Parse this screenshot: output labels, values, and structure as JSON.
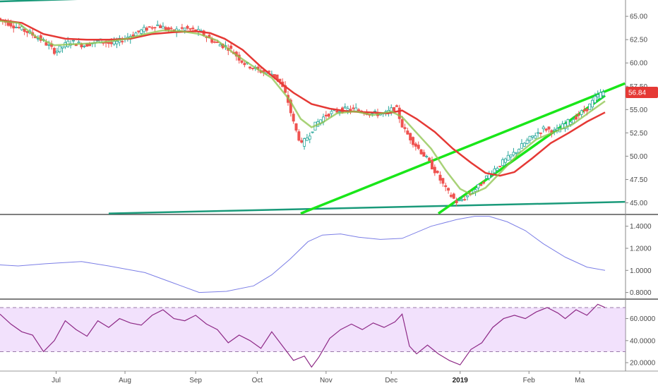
{
  "chart_data": [
    {
      "type": "candlestick",
      "panel": "price",
      "y_ticks": [
        "65.00",
        "62.50",
        "60.00",
        "57.50",
        "55.00",
        "52.50",
        "50.00",
        "47.50",
        "45.00"
      ],
      "ylim": [
        43.75,
        66.75
      ],
      "last_price": "56.84",
      "colors": {
        "up": "#26a69a",
        "down": "#ef5350",
        "fast_ma": "#8bc34a",
        "slow_ma": "#e53935",
        "trendline": "#19e619",
        "channel": "#1a9a7a",
        "badge": "#e53935"
      },
      "price_path": [
        [
          0,
          64.8
        ],
        [
          8,
          64.1
        ],
        [
          18,
          63.2
        ],
        [
          25,
          62.4
        ],
        [
          32,
          61.2
        ],
        [
          40,
          62.3
        ],
        [
          48,
          61.9
        ],
        [
          56,
          62.4
        ],
        [
          64,
          62.0
        ],
        [
          72,
          62.8
        ],
        [
          80,
          63.5
        ],
        [
          88,
          64.1
        ],
        [
          96,
          63.4
        ],
        [
          104,
          63.7
        ],
        [
          112,
          63.3
        ],
        [
          120,
          62.2
        ],
        [
          128,
          61.6
        ],
        [
          136,
          60.0
        ],
        [
          144,
          59.2
        ],
        [
          152,
          58.8
        ],
        [
          156,
          58.0
        ],
        [
          160,
          56.2
        ],
        [
          164,
          53.2
        ],
        [
          168,
          51.2
        ],
        [
          172,
          52.3
        ],
        [
          176,
          53.5
        ],
        [
          182,
          54.5
        ],
        [
          190,
          55.0
        ],
        [
          198,
          55.0
        ],
        [
          206,
          54.6
        ],
        [
          214,
          54.5
        ],
        [
          220,
          55.3
        ],
        [
          224,
          53.0
        ],
        [
          230,
          51.4
        ],
        [
          236,
          50.0
        ],
        [
          242,
          48.3
        ],
        [
          248,
          46.3
        ],
        [
          254,
          45.0
        ],
        [
          260,
          45.8
        ],
        [
          266,
          46.8
        ],
        [
          272,
          48.2
        ],
        [
          278,
          49.2
        ],
        [
          284,
          50.1
        ],
        [
          290,
          51.2
        ],
        [
          296,
          52.2
        ],
        [
          302,
          53.0
        ],
        [
          308,
          52.6
        ],
        [
          314,
          53.5
        ],
        [
          320,
          54.3
        ],
        [
          326,
          55.2
        ],
        [
          330,
          56.2
        ],
        [
          334,
          56.84
        ]
      ],
      "fast_ma": [
        [
          0,
          64.5
        ],
        [
          10,
          64.3
        ],
        [
          20,
          62.8
        ],
        [
          30,
          61.9
        ],
        [
          40,
          62.0
        ],
        [
          50,
          62.1
        ],
        [
          60,
          62.3
        ],
        [
          70,
          62.6
        ],
        [
          80,
          63.1
        ],
        [
          90,
          63.5
        ],
        [
          100,
          63.4
        ],
        [
          110,
          63.1
        ],
        [
          120,
          62.4
        ],
        [
          130,
          60.9
        ],
        [
          140,
          59.6
        ],
        [
          150,
          58.4
        ],
        [
          160,
          56.0
        ],
        [
          166,
          54.0
        ],
        [
          172,
          53.1
        ],
        [
          178,
          53.6
        ],
        [
          186,
          54.6
        ],
        [
          196,
          54.8
        ],
        [
          206,
          54.4
        ],
        [
          216,
          54.8
        ],
        [
          222,
          54.2
        ],
        [
          230,
          52.5
        ],
        [
          238,
          50.8
        ],
        [
          246,
          48.5
        ],
        [
          254,
          46.5
        ],
        [
          260,
          45.9
        ],
        [
          268,
          46.6
        ],
        [
          276,
          48.2
        ],
        [
          286,
          50.2
        ],
        [
          296,
          51.8
        ],
        [
          306,
          52.6
        ],
        [
          316,
          53.4
        ],
        [
          326,
          54.8
        ],
        [
          334,
          55.9
        ]
      ],
      "slow_ma": [
        [
          0,
          64.6
        ],
        [
          12,
          64.3
        ],
        [
          24,
          63.1
        ],
        [
          36,
          62.6
        ],
        [
          48,
          62.5
        ],
        [
          60,
          62.5
        ],
        [
          72,
          62.6
        ],
        [
          84,
          63.1
        ],
        [
          96,
          63.3
        ],
        [
          108,
          63.4
        ],
        [
          116,
          63.2
        ],
        [
          124,
          62.6
        ],
        [
          134,
          61.4
        ],
        [
          144,
          59.6
        ],
        [
          154,
          58.0
        ],
        [
          162,
          56.8
        ],
        [
          172,
          55.6
        ],
        [
          182,
          55.1
        ],
        [
          192,
          54.8
        ],
        [
          204,
          54.7
        ],
        [
          214,
          54.6
        ],
        [
          222,
          54.9
        ],
        [
          230,
          54.0
        ],
        [
          240,
          52.6
        ],
        [
          250,
          50.8
        ],
        [
          260,
          49.3
        ],
        [
          268,
          48.2
        ],
        [
          276,
          47.9
        ],
        [
          284,
          48.3
        ],
        [
          294,
          49.8
        ],
        [
          304,
          51.4
        ],
        [
          314,
          52.5
        ],
        [
          324,
          53.7
        ],
        [
          334,
          54.7
        ]
      ]
    },
    {
      "type": "line",
      "panel": "indicator",
      "y_ticks": [
        "1.4000",
        "1.2000",
        "1.0000",
        "0.8000"
      ],
      "ylim": [
        0.74,
        1.5
      ],
      "color": "#7b7ee6",
      "points": [
        [
          0,
          1.05
        ],
        [
          10,
          1.04
        ],
        [
          25,
          1.06
        ],
        [
          45,
          1.08
        ],
        [
          60,
          1.04
        ],
        [
          80,
          0.98
        ],
        [
          95,
          0.89
        ],
        [
          110,
          0.8
        ],
        [
          125,
          0.81
        ],
        [
          140,
          0.86
        ],
        [
          150,
          0.96
        ],
        [
          160,
          1.1
        ],
        [
          170,
          1.26
        ],
        [
          178,
          1.32
        ],
        [
          188,
          1.33
        ],
        [
          198,
          1.3
        ],
        [
          210,
          1.28
        ],
        [
          222,
          1.29
        ],
        [
          238,
          1.4
        ],
        [
          252,
          1.46
        ],
        [
          262,
          1.49
        ],
        [
          270,
          1.49
        ],
        [
          280,
          1.44
        ],
        [
          290,
          1.36
        ],
        [
          300,
          1.24
        ],
        [
          312,
          1.12
        ],
        [
          324,
          1.03
        ],
        [
          334,
          1.0
        ]
      ]
    },
    {
      "type": "line",
      "panel": "rsi",
      "y_ticks": [
        "60.0000",
        "40.0000",
        "20.0000"
      ],
      "ylim": [
        13,
        77
      ],
      "band": [
        30,
        70
      ],
      "color": "#8e2a87",
      "band_fill": "rgba(218,170,246,0.35)",
      "points": [
        [
          0,
          64
        ],
        [
          6,
          55
        ],
        [
          12,
          48
        ],
        [
          18,
          45
        ],
        [
          24,
          30
        ],
        [
          30,
          40
        ],
        [
          36,
          58
        ],
        [
          42,
          50
        ],
        [
          48,
          44
        ],
        [
          54,
          58
        ],
        [
          60,
          52
        ],
        [
          66,
          60
        ],
        [
          72,
          56
        ],
        [
          78,
          54
        ],
        [
          84,
          63
        ],
        [
          90,
          68
        ],
        [
          96,
          60
        ],
        [
          102,
          58
        ],
        [
          108,
          63
        ],
        [
          114,
          55
        ],
        [
          120,
          50
        ],
        [
          126,
          38
        ],
        [
          132,
          45
        ],
        [
          138,
          40
        ],
        [
          144,
          33
        ],
        [
          150,
          48
        ],
        [
          156,
          35
        ],
        [
          162,
          22
        ],
        [
          168,
          26
        ],
        [
          172,
          16
        ],
        [
          176,
          25
        ],
        [
          182,
          42
        ],
        [
          188,
          50
        ],
        [
          194,
          55
        ],
        [
          200,
          50
        ],
        [
          206,
          56
        ],
        [
          212,
          52
        ],
        [
          218,
          57
        ],
        [
          222,
          64
        ],
        [
          226,
          35
        ],
        [
          230,
          28
        ],
        [
          236,
          36
        ],
        [
          242,
          28
        ],
        [
          248,
          22
        ],
        [
          254,
          18
        ],
        [
          260,
          32
        ],
        [
          266,
          38
        ],
        [
          272,
          52
        ],
        [
          278,
          60
        ],
        [
          284,
          63
        ],
        [
          290,
          60
        ],
        [
          296,
          66
        ],
        [
          302,
          70
        ],
        [
          308,
          65
        ],
        [
          312,
          60
        ],
        [
          318,
          68
        ],
        [
          324,
          63
        ],
        [
          330,
          73
        ],
        [
          334,
          70
        ]
      ]
    }
  ],
  "x_axis": {
    "labels": [
      {
        "text": "Jul",
        "t": 31,
        "bold": false
      },
      {
        "text": "Aug",
        "t": 69,
        "bold": false
      },
      {
        "text": "Sep",
        "t": 108,
        "bold": false
      },
      {
        "text": "Oct",
        "t": 142,
        "bold": false
      },
      {
        "text": "Nov",
        "t": 180,
        "bold": false
      },
      {
        "text": "Dec",
        "t": 216,
        "bold": false
      },
      {
        "text": "2019",
        "t": 254,
        "bold": true
      },
      {
        "text": "Feb",
        "t": 292,
        "bold": false
      },
      {
        "text": "Ma",
        "t": 320,
        "bold": false
      }
    ],
    "t_range": [
      0,
      334
    ]
  }
}
